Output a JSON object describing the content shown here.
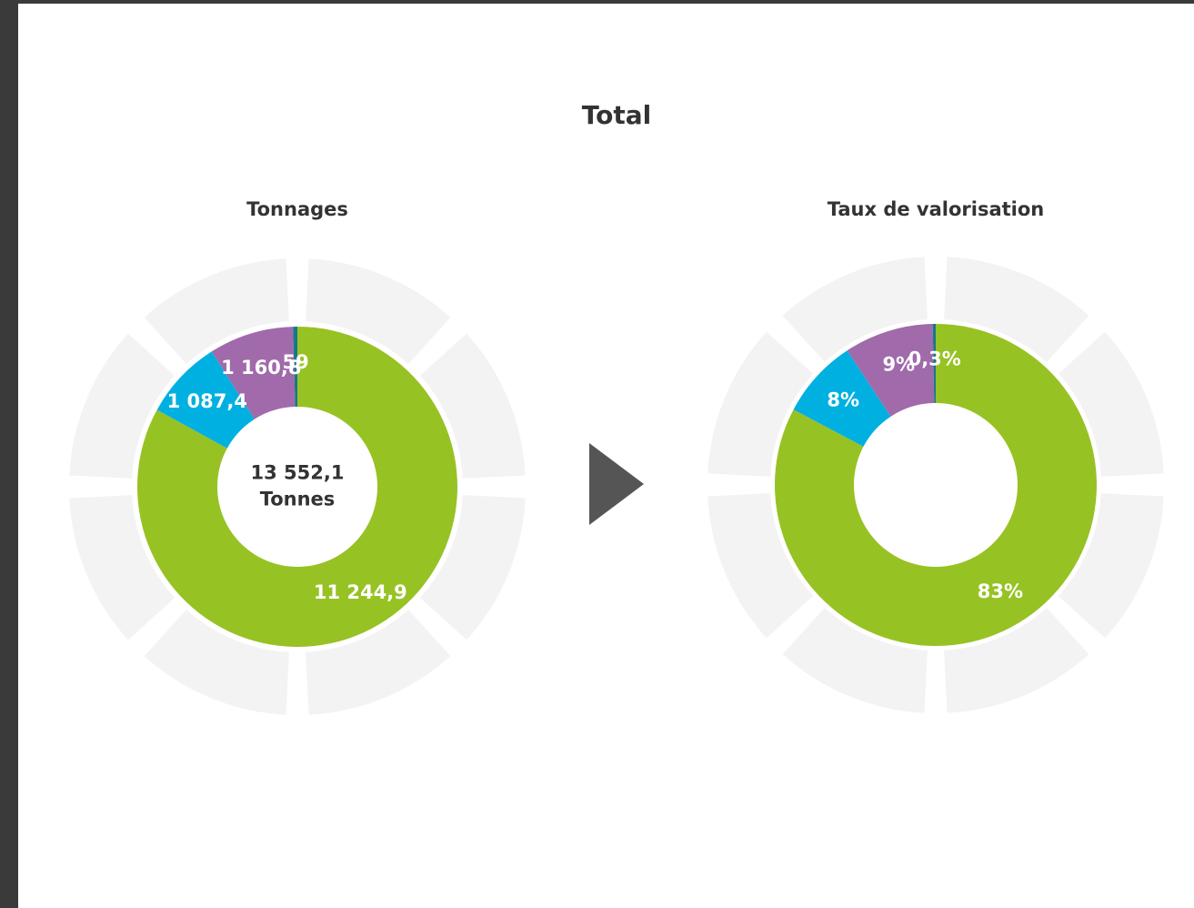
{
  "title": "Total",
  "chart_data": [
    {
      "type": "donut",
      "title": "Tonnages",
      "categories": [
        null,
        null,
        null,
        null
      ],
      "values": [
        11244.9,
        1087.4,
        1160.8,
        59
      ],
      "value_labels": [
        "11 244,9",
        "1 087,4",
        "1 160,8",
        "59"
      ],
      "colors": [
        "#97c224",
        "#00b0e0",
        "#a06aab",
        "#16788a"
      ],
      "center_text": [
        "13 552,1",
        "Tonnes"
      ]
    },
    {
      "type": "donut",
      "title": "Taux de valorisation",
      "categories": [
        null,
        null,
        null,
        null
      ],
      "values": [
        83,
        8,
        9,
        0.3
      ],
      "value_labels": [
        "83%",
        "8%",
        "9%",
        "0,3%"
      ],
      "colors": [
        "#97c224",
        "#00b0e0",
        "#a06aab",
        "#16788a"
      ]
    }
  ]
}
